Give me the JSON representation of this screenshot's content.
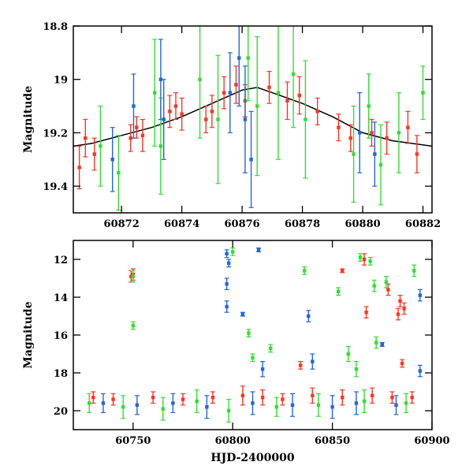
{
  "chart_data": [
    {
      "type": "scatter",
      "title": "",
      "xlabel": "",
      "ylabel": "Magnitude",
      "xlim": [
        60870.4,
        60882.3
      ],
      "ylim": [
        19.5,
        18.8
      ],
      "y_inverted": true,
      "grid": false,
      "legend": "none",
      "x_ticks": [
        60872,
        60874,
        60876,
        60878,
        60880,
        60882
      ],
      "y_ticks": [
        18.8,
        19,
        19.2,
        19.4
      ],
      "series": [
        {
          "color": "#ff3322",
          "points": [
            {
              "x": 60870.6,
              "y": 19.33,
              "err": 0.08
            },
            {
              "x": 60870.8,
              "y": 19.22,
              "err": 0.07
            },
            {
              "x": 60871.1,
              "y": 19.28,
              "err": 0.06
            },
            {
              "x": 60872.3,
              "y": 19.22,
              "err": 0.05
            },
            {
              "x": 60872.5,
              "y": 19.18,
              "err": 0.04
            },
            {
              "x": 60872.7,
              "y": 19.21,
              "err": 0.06
            },
            {
              "x": 60873.6,
              "y": 19.12,
              "err": 0.06
            },
            {
              "x": 60873.8,
              "y": 19.1,
              "err": 0.05
            },
            {
              "x": 60874.0,
              "y": 19.13,
              "err": 0.06
            },
            {
              "x": 60874.8,
              "y": 19.15,
              "err": 0.05
            },
            {
              "x": 60875.0,
              "y": 19.12,
              "err": 0.06
            },
            {
              "x": 60875.4,
              "y": 19.05,
              "err": 0.06
            },
            {
              "x": 60875.8,
              "y": 19.02,
              "err": 0.07
            },
            {
              "x": 60876.1,
              "y": 19.08,
              "err": 0.06
            },
            {
              "x": 60876.9,
              "y": 19.03,
              "err": 0.06
            },
            {
              "x": 60877.5,
              "y": 19.08,
              "err": 0.07
            },
            {
              "x": 60877.9,
              "y": 19.06,
              "err": 0.07
            },
            {
              "x": 60878.5,
              "y": 19.12,
              "err": 0.05
            },
            {
              "x": 60879.2,
              "y": 19.18,
              "err": 0.05
            },
            {
              "x": 60879.6,
              "y": 19.22,
              "err": 0.05
            },
            {
              "x": 60880.3,
              "y": 19.2,
              "err": 0.05
            },
            {
              "x": 60880.8,
              "y": 19.22,
              "err": 0.06
            },
            {
              "x": 60881.5,
              "y": 19.18,
              "err": 0.06
            },
            {
              "x": 60881.8,
              "y": 19.28,
              "err": 0.07
            }
          ]
        },
        {
          "color": "#33dd33",
          "points": [
            {
              "x": 60871.3,
              "y": 19.25,
              "err": 0.15
            },
            {
              "x": 60871.9,
              "y": 19.35,
              "err": 0.14
            },
            {
              "x": 60873.1,
              "y": 19.05,
              "err": 0.2
            },
            {
              "x": 60873.3,
              "y": 19.25,
              "err": 0.18
            },
            {
              "x": 60874.6,
              "y": 19.0,
              "err": 0.22
            },
            {
              "x": 60875.2,
              "y": 19.15,
              "err": 0.24
            },
            {
              "x": 60876.2,
              "y": 18.92,
              "err": 0.16
            },
            {
              "x": 60876.5,
              "y": 19.1,
              "err": 0.26
            },
            {
              "x": 60877.2,
              "y": 19.05,
              "err": 0.25
            },
            {
              "x": 60877.7,
              "y": 18.98,
              "err": 0.2
            },
            {
              "x": 60878.1,
              "y": 19.15,
              "err": 0.22
            },
            {
              "x": 60879.7,
              "y": 19.28,
              "err": 0.18
            },
            {
              "x": 60880.2,
              "y": 19.1,
              "err": 0.12
            },
            {
              "x": 60880.6,
              "y": 19.32,
              "err": 0.15
            },
            {
              "x": 60881.2,
              "y": 19.2,
              "err": 0.15
            },
            {
              "x": 60882.0,
              "y": 19.05,
              "err": 0.1
            }
          ]
        },
        {
          "color": "#2266dd",
          "points": [
            {
              "x": 60871.7,
              "y": 19.3,
              "err": 0.12
            },
            {
              "x": 60872.4,
              "y": 19.1,
              "err": 0.12
            },
            {
              "x": 60873.3,
              "y": 19.0,
              "err": 0.15
            },
            {
              "x": 60873.4,
              "y": 19.15,
              "err": 0.15
            },
            {
              "x": 60875.6,
              "y": 19.05,
              "err": 0.15
            },
            {
              "x": 60875.9,
              "y": 18.92,
              "err": 0.18
            },
            {
              "x": 60876.1,
              "y": 19.15,
              "err": 0.2
            },
            {
              "x": 60876.3,
              "y": 19.3,
              "err": 0.18
            },
            {
              "x": 60879.9,
              "y": 19.2,
              "err": 0.15
            },
            {
              "x": 60880.4,
              "y": 19.28,
              "err": 0.12
            }
          ]
        }
      ],
      "model_curve": {
        "color": "#000000",
        "points": [
          [
            60870.4,
            19.25
          ],
          [
            60871.0,
            19.24
          ],
          [
            60872.0,
            19.21
          ],
          [
            60873.0,
            19.18
          ],
          [
            60874.0,
            19.14
          ],
          [
            60875.0,
            19.09
          ],
          [
            60876.0,
            19.04
          ],
          [
            60876.5,
            19.03
          ],
          [
            60877.0,
            19.05
          ],
          [
            60878.0,
            19.09
          ],
          [
            60879.0,
            19.14
          ],
          [
            60880.0,
            19.2
          ],
          [
            60881.0,
            19.23
          ],
          [
            60882.3,
            19.25
          ]
        ]
      }
    },
    {
      "type": "scatter",
      "title": "",
      "xlabel": "HJD-2400000",
      "ylabel": "Magnitude",
      "xlim": [
        60720,
        60900
      ],
      "ylim": [
        21,
        11
      ],
      "y_inverted": true,
      "grid": false,
      "legend": "none",
      "x_ticks": [
        60750,
        60800,
        60850,
        60900
      ],
      "y_ticks": [
        12,
        14,
        16,
        18,
        20
      ],
      "series": [
        {
          "color": "#ff3322",
          "points": [
            {
              "x": 60749,
              "y": 12.9,
              "err": 0.3
            },
            {
              "x": 60750,
              "y": 12.8,
              "err": 0.3
            },
            {
              "x": 60834,
              "y": 17.6,
              "err": 0.2
            },
            {
              "x": 60855,
              "y": 12.6,
              "err": 0.1
            },
            {
              "x": 60866,
              "y": 12.0,
              "err": 0.3
            },
            {
              "x": 60867,
              "y": 14.8,
              "err": 0.3
            },
            {
              "x": 60878,
              "y": 13.6,
              "err": 0.3
            },
            {
              "x": 60883,
              "y": 14.9,
              "err": 0.3
            },
            {
              "x": 60884,
              "y": 14.2,
              "err": 0.3
            },
            {
              "x": 60886,
              "y": 14.6,
              "err": 0.3
            },
            {
              "x": 60885,
              "y": 17.5,
              "err": 0.2
            },
            {
              "x": 60730,
              "y": 19.3,
              "err": 0.3
            },
            {
              "x": 60740,
              "y": 19.4,
              "err": 0.3
            },
            {
              "x": 60760,
              "y": 19.3,
              "err": 0.3
            },
            {
              "x": 60775,
              "y": 19.4,
              "err": 0.3
            },
            {
              "x": 60790,
              "y": 19.3,
              "err": 0.3
            },
            {
              "x": 60805,
              "y": 19.2,
              "err": 0.5
            },
            {
              "x": 60815,
              "y": 19.3,
              "err": 0.4
            },
            {
              "x": 60825,
              "y": 19.4,
              "err": 0.3
            },
            {
              "x": 60840,
              "y": 19.2,
              "err": 0.4
            },
            {
              "x": 60855,
              "y": 19.3,
              "err": 0.4
            },
            {
              "x": 60870,
              "y": 19.2,
              "err": 0.4
            },
            {
              "x": 60880,
              "y": 19.3,
              "err": 0.3
            },
            {
              "x": 60890,
              "y": 19.3,
              "err": 0.3
            }
          ]
        },
        {
          "color": "#33dd33",
          "points": [
            {
              "x": 60750,
              "y": 12.9,
              "err": 0.3
            },
            {
              "x": 60750,
              "y": 15.5,
              "err": 0.2
            },
            {
              "x": 60800,
              "y": 11.6,
              "err": 0.2
            },
            {
              "x": 60808,
              "y": 15.9,
              "err": 0.2
            },
            {
              "x": 60810,
              "y": 17.2,
              "err": 0.2
            },
            {
              "x": 60819,
              "y": 16.7,
              "err": 0.2
            },
            {
              "x": 60836,
              "y": 12.6,
              "err": 0.2
            },
            {
              "x": 60853,
              "y": 13.7,
              "err": 0.2
            },
            {
              "x": 60864,
              "y": 11.9,
              "err": 0.2
            },
            {
              "x": 60869,
              "y": 12.1,
              "err": 0.2
            },
            {
              "x": 60871,
              "y": 13.4,
              "err": 0.3
            },
            {
              "x": 60877,
              "y": 13.2,
              "err": 0.3
            },
            {
              "x": 60891,
              "y": 12.6,
              "err": 0.3
            },
            {
              "x": 60872,
              "y": 16.4,
              "err": 0.3
            },
            {
              "x": 60858,
              "y": 17.0,
              "err": 0.4
            },
            {
              "x": 60862,
              "y": 17.8,
              "err": 0.4
            },
            {
              "x": 60728,
              "y": 19.6,
              "err": 0.5
            },
            {
              "x": 60745,
              "y": 19.8,
              "err": 0.6
            },
            {
              "x": 60765,
              "y": 19.9,
              "err": 0.6
            },
            {
              "x": 60782,
              "y": 19.5,
              "err": 0.6
            },
            {
              "x": 60798,
              "y": 20.0,
              "err": 0.6
            },
            {
              "x": 60822,
              "y": 19.8,
              "err": 0.5
            },
            {
              "x": 60843,
              "y": 19.7,
              "err": 0.6
            },
            {
              "x": 60866,
              "y": 19.5,
              "err": 0.6
            },
            {
              "x": 60887,
              "y": 19.6,
              "err": 0.5
            }
          ]
        },
        {
          "color": "#2266dd",
          "points": [
            {
              "x": 60797,
              "y": 11.7,
              "err": 0.2
            },
            {
              "x": 60798,
              "y": 12.2,
              "err": 0.2
            },
            {
              "x": 60797,
              "y": 13.3,
              "err": 0.3
            },
            {
              "x": 60797,
              "y": 14.5,
              "err": 0.3
            },
            {
              "x": 60805,
              "y": 14.9,
              "err": 0.1
            },
            {
              "x": 60813,
              "y": 11.5,
              "err": 0.1
            },
            {
              "x": 60838,
              "y": 15.0,
              "err": 0.3
            },
            {
              "x": 60875,
              "y": 16.5,
              "err": 0.1
            },
            {
              "x": 60894,
              "y": 13.9,
              "err": 0.3
            },
            {
              "x": 60815,
              "y": 17.8,
              "err": 0.4
            },
            {
              "x": 60840,
              "y": 17.4,
              "err": 0.4
            },
            {
              "x": 60894,
              "y": 17.9,
              "err": 0.3
            },
            {
              "x": 60735,
              "y": 19.6,
              "err": 0.5
            },
            {
              "x": 60752,
              "y": 19.7,
              "err": 0.5
            },
            {
              "x": 60770,
              "y": 19.6,
              "err": 0.5
            },
            {
              "x": 60787,
              "y": 19.8,
              "err": 0.6
            },
            {
              "x": 60810,
              "y": 19.6,
              "err": 0.6
            },
            {
              "x": 60830,
              "y": 19.7,
              "err": 0.6
            },
            {
              "x": 60850,
              "y": 19.8,
              "err": 0.6
            },
            {
              "x": 60862,
              "y": 19.6,
              "err": 0.6
            },
            {
              "x": 60882,
              "y": 19.7,
              "err": 0.5
            }
          ]
        }
      ]
    }
  ]
}
